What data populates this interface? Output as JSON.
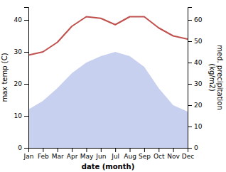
{
  "chart_data": {
    "type": "line",
    "categories": [
      "Jan",
      "Feb",
      "Mar",
      "Apr",
      "May",
      "Jun",
      "Jul",
      "Aug",
      "Sep",
      "Oct",
      "Nov",
      "Dec"
    ],
    "xlabel": "date (month)",
    "ylabel": "max temp (C)",
    "y2label": "med. precipitation\n(kg/m2)",
    "series": [
      {
        "type": "area",
        "axis": "y2",
        "color": "#c8d0f0",
        "values": [
          18,
          22,
          28,
          35,
          40,
          43,
          45,
          43,
          38,
          28,
          20,
          17
        ]
      },
      {
        "type": "line",
        "color": "#c0504d",
        "values": [
          29,
          30,
          33,
          38,
          41,
          40.5,
          38.5,
          41,
          41,
          37.5,
          35,
          34
        ]
      }
    ],
    "ylim": [
      0,
      44
    ],
    "yticks": [
      0,
      10,
      20,
      30,
      40
    ],
    "y2lim": [
      0,
      66
    ],
    "y2ticks": [
      0,
      10,
      20,
      30,
      40,
      50,
      60
    ],
    "grid": false
  }
}
